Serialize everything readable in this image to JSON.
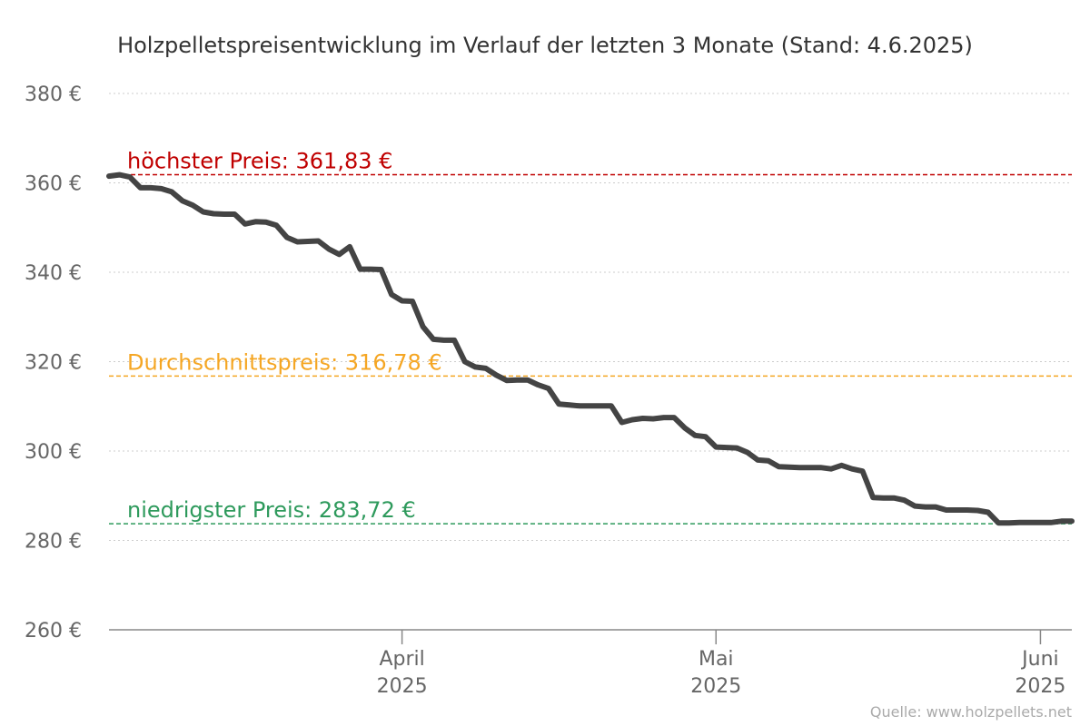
{
  "chart_data": {
    "type": "line",
    "title": "Holzpelletspreisentwicklung im Verlauf der letzten 3 Monate (Stand: 4.6.2025)",
    "source": "Quelle: www.holzpellets.net",
    "ylim": [
      260,
      380
    ],
    "yticks": [
      {
        "value": 260,
        "label": "260 €"
      },
      {
        "value": 280,
        "label": "280 €"
      },
      {
        "value": 300,
        "label": "300 €"
      },
      {
        "value": 320,
        "label": "320 €"
      },
      {
        "value": 340,
        "label": "340 €"
      },
      {
        "value": 360,
        "label": "360 €"
      },
      {
        "value": 380,
        "label": "380 €"
      }
    ],
    "xlim": [
      "2025-03-04",
      "2025-06-04"
    ],
    "xticks": [
      {
        "date": "2025-04-01",
        "month": "April",
        "year": "2025"
      },
      {
        "date": "2025-05-01",
        "month": "Mai",
        "year": "2025"
      },
      {
        "date": "2025-06-01",
        "month": "Juni",
        "year": "2025"
      }
    ],
    "grid": true,
    "reference_lines": [
      {
        "key": "max",
        "label": "höchster Preis: 361,83 €",
        "value": 361.83,
        "color": "#c00000"
      },
      {
        "key": "avg",
        "label": "Durchschnittspreis: 316,78 €",
        "value": 316.78,
        "color": "#f5a623"
      },
      {
        "key": "min",
        "label": "niedrigster Preis: 283,72 €",
        "value": 283.72,
        "color": "#2e9a5c"
      }
    ],
    "series": [
      {
        "color": "#444444",
        "x": [
          "2025-03-04",
          "2025-03-05",
          "2025-03-06",
          "2025-03-07",
          "2025-03-08",
          "2025-03-09",
          "2025-03-10",
          "2025-03-11",
          "2025-03-12",
          "2025-03-13",
          "2025-03-14",
          "2025-03-15",
          "2025-03-16",
          "2025-03-17",
          "2025-03-18",
          "2025-03-19",
          "2025-03-20",
          "2025-03-21",
          "2025-03-22",
          "2025-03-23",
          "2025-03-24",
          "2025-03-25",
          "2025-03-26",
          "2025-03-27",
          "2025-03-28",
          "2025-03-29",
          "2025-03-30",
          "2025-03-31",
          "2025-04-01",
          "2025-04-02",
          "2025-04-03",
          "2025-04-04",
          "2025-04-05",
          "2025-04-06",
          "2025-04-07",
          "2025-04-08",
          "2025-04-09",
          "2025-04-10",
          "2025-04-11",
          "2025-04-12",
          "2025-04-13",
          "2025-04-14",
          "2025-04-15",
          "2025-04-16",
          "2025-04-17",
          "2025-04-18",
          "2025-04-19",
          "2025-04-20",
          "2025-04-21",
          "2025-04-22",
          "2025-04-23",
          "2025-04-24",
          "2025-04-25",
          "2025-04-26",
          "2025-04-27",
          "2025-04-28",
          "2025-04-29",
          "2025-04-30",
          "2025-05-01",
          "2025-05-02",
          "2025-05-03",
          "2025-05-04",
          "2025-05-05",
          "2025-05-06",
          "2025-05-07",
          "2025-05-08",
          "2025-05-09",
          "2025-05-10",
          "2025-05-11",
          "2025-05-12",
          "2025-05-13",
          "2025-05-14",
          "2025-05-15",
          "2025-05-16",
          "2025-05-17",
          "2025-05-18",
          "2025-05-19",
          "2025-05-20",
          "2025-05-21",
          "2025-05-22",
          "2025-05-23",
          "2025-05-24",
          "2025-05-25",
          "2025-05-26",
          "2025-05-27",
          "2025-05-28",
          "2025-05-29",
          "2025-05-30",
          "2025-05-31",
          "2025-06-01",
          "2025-06-02",
          "2025-06-03",
          "2025-06-04"
        ],
        "values": [
          361.5,
          361.8,
          361.3,
          358.9,
          358.9,
          358.7,
          358.0,
          356.0,
          355.0,
          353.5,
          353.1,
          353.0,
          353.0,
          350.8,
          351.3,
          351.2,
          350.5,
          347.8,
          346.8,
          346.9,
          347.0,
          345.2,
          344.0,
          345.7,
          340.7,
          340.7,
          340.6,
          335.0,
          333.6,
          333.5,
          327.8,
          325.0,
          324.8,
          324.8,
          320.0,
          318.8,
          318.5,
          317.0,
          315.8,
          315.9,
          315.9,
          314.8,
          314.0,
          310.5,
          310.3,
          310.1,
          310.1,
          310.1,
          310.1,
          306.4,
          307.0,
          307.3,
          307.2,
          307.5,
          307.5,
          305.2,
          303.5,
          303.2,
          300.9,
          300.8,
          300.7,
          299.7,
          298.0,
          297.8,
          296.5,
          296.4,
          296.3,
          296.3,
          296.3,
          296.0,
          296.8,
          296.0,
          295.5,
          289.6,
          289.5,
          289.5,
          289.0,
          287.7,
          287.5,
          287.5,
          286.8,
          286.8,
          286.8,
          286.7,
          286.3,
          283.9,
          283.9,
          284.0,
          284.0,
          284.0,
          284.0,
          284.3,
          284.3
        ]
      }
    ]
  }
}
